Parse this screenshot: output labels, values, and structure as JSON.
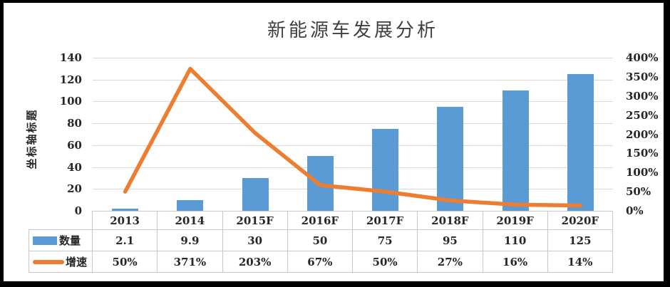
{
  "window": {
    "background": "#FFFFFF",
    "frame_color": "#000000"
  },
  "chart_data": {
    "type": "combo-bar-line",
    "title": "新能源车发展分析",
    "categories": [
      "2013",
      "2014",
      "2015F",
      "2016F",
      "2017F",
      "2018F",
      "2019F",
      "2020F"
    ],
    "series": [
      {
        "name": "数量",
        "chart": "bar",
        "color": "#5B9BD5",
        "axis": "left",
        "values": [
          2.1,
          9.9,
          30,
          50,
          75,
          95,
          110,
          125
        ],
        "labels": [
          "2.1",
          "9.9",
          "30",
          "50",
          "75",
          "95",
          "110",
          "125"
        ]
      },
      {
        "name": "增速",
        "chart": "line",
        "color": "#ED7D31",
        "axis": "right",
        "values": [
          50,
          371,
          203,
          67,
          50,
          27,
          16,
          14
        ],
        "labels": [
          "50%",
          "371%",
          "203%",
          "67%",
          "50%",
          "27%",
          "16%",
          "14%"
        ]
      }
    ],
    "left_axis": {
      "title": "坐标轴标题",
      "min": 0,
      "max": 140,
      "step": 20,
      "ticks": [
        "140",
        "120",
        "100",
        "80",
        "60",
        "40",
        "20",
        "0"
      ]
    },
    "right_axis": {
      "min": 0,
      "max": 400,
      "step": 50,
      "ticks": [
        "400%",
        "350%",
        "300%",
        "250%",
        "200%",
        "150%",
        "100%",
        "50%",
        "0%"
      ]
    },
    "gridlines": true,
    "legend_position": "data-table-left",
    "colors": {
      "bar": "#5B9BD5",
      "line": "#ED7D31",
      "gridline": "#D9D9D9",
      "table_border": "#C9C9C9",
      "text": "#262626",
      "title_text": "#3F3F3F"
    }
  }
}
